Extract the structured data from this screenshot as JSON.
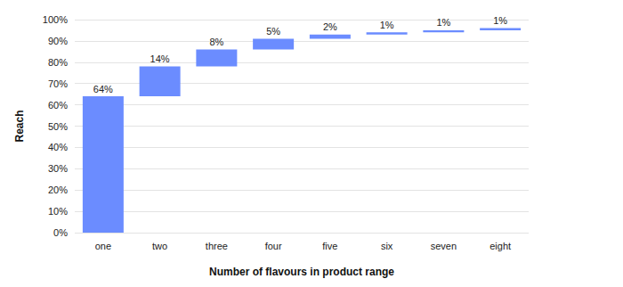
{
  "chart_data": {
    "type": "waterfall",
    "xlabel": "Number of flavours in product range",
    "ylabel": "Reach",
    "categories": [
      "one",
      "two",
      "three",
      "four",
      "five",
      "six",
      "seven",
      "eight"
    ],
    "values": [
      64,
      14,
      8,
      5,
      2,
      1,
      1,
      1
    ],
    "value_labels": [
      "64%",
      "14%",
      "8%",
      "5%",
      "2%",
      "1%",
      "1%",
      "1%"
    ],
    "color": "#6b8cff",
    "ylim": [
      0,
      100
    ],
    "yticks": [
      {
        "value": 0,
        "label": "0%"
      },
      {
        "value": 10,
        "label": "10%"
      },
      {
        "value": 20,
        "label": "20%"
      },
      {
        "value": 30,
        "label": "30%"
      },
      {
        "value": 40,
        "label": "40%"
      },
      {
        "value": 50,
        "label": "50%"
      },
      {
        "value": 60,
        "label": "60%"
      },
      {
        "value": 70,
        "label": "70%"
      },
      {
        "value": 80,
        "label": "80%"
      },
      {
        "value": 90,
        "label": "90%"
      },
      {
        "value": 100,
        "label": "100%"
      }
    ],
    "grid": true,
    "data_labels": true
  }
}
